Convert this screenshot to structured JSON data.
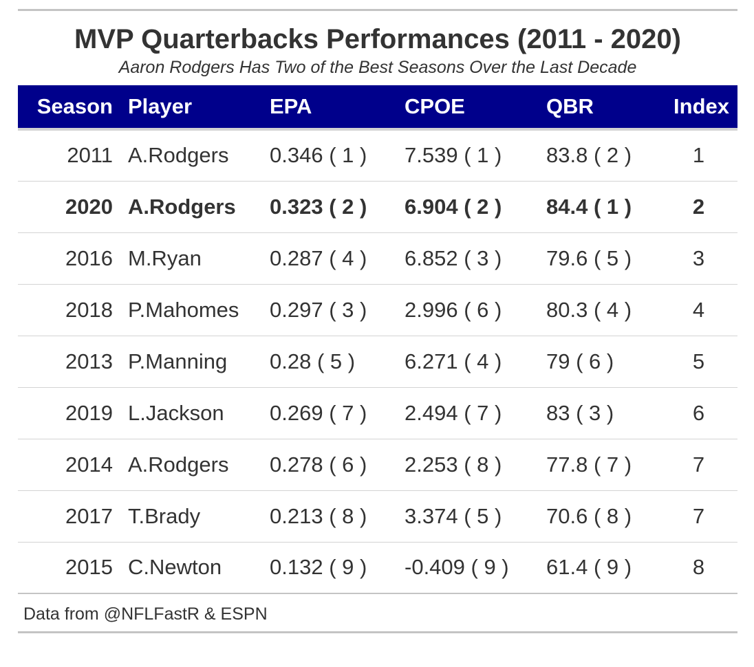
{
  "title": "MVP Quarterbacks Performances (2011 - 2020)",
  "subtitle": "Aaron Rodgers Has Two of the Best Seasons Over the Last Decade",
  "source": "Data from @NFLFastR & ESPN",
  "colors": {
    "header_bg": "#00008b",
    "header_text": "#ffffff",
    "body_text": "#333333",
    "rule": "#d3d3d3"
  },
  "chart_data": {
    "type": "table",
    "title": "MVP Quarterbacks Performances (2011 - 2020)",
    "subtitle": "Aaron Rodgers Has Two of the Best Seasons Over the Last Decade",
    "columns": [
      "Season",
      "Player",
      "EPA",
      "CPOE",
      "QBR",
      "Index"
    ],
    "rows": [
      {
        "season": "2011",
        "player": "A.Rodgers",
        "epa": "0.346 ( 1 )",
        "cpoe": "7.539 ( 1 )",
        "qbr": "83.8 ( 2 )",
        "index": "1",
        "bold": false
      },
      {
        "season": "2020",
        "player": "A.Rodgers",
        "epa": "0.323 ( 2 )",
        "cpoe": "6.904 ( 2 )",
        "qbr": "84.4 ( 1 )",
        "index": "2",
        "bold": true
      },
      {
        "season": "2016",
        "player": "M.Ryan",
        "epa": "0.287 ( 4 )",
        "cpoe": "6.852 ( 3 )",
        "qbr": "79.6 ( 5 )",
        "index": "3",
        "bold": false
      },
      {
        "season": "2018",
        "player": "P.Mahomes",
        "epa": "0.297 ( 3 )",
        "cpoe": "2.996 ( 6 )",
        "qbr": "80.3 ( 4 )",
        "index": "4",
        "bold": false
      },
      {
        "season": "2013",
        "player": "P.Manning",
        "epa": "0.28 ( 5 )",
        "cpoe": "6.271 ( 4 )",
        "qbr": "79 ( 6 )",
        "index": "5",
        "bold": false
      },
      {
        "season": "2019",
        "player": "L.Jackson",
        "epa": "0.269 ( 7 )",
        "cpoe": "2.494 ( 7 )",
        "qbr": "83 ( 3 )",
        "index": "6",
        "bold": false
      },
      {
        "season": "2014",
        "player": "A.Rodgers",
        "epa": "0.278 ( 6 )",
        "cpoe": "2.253 ( 8 )",
        "qbr": "77.8 ( 7 )",
        "index": "7",
        "bold": false
      },
      {
        "season": "2017",
        "player": "T.Brady",
        "epa": "0.213 ( 8 )",
        "cpoe": "3.374 ( 5 )",
        "qbr": "70.6 ( 8 )",
        "index": "7",
        "bold": false
      },
      {
        "season": "2015",
        "player": "C.Newton",
        "epa": "0.132 ( 9 )",
        "cpoe": "-0.409 ( 9 )",
        "qbr": "61.4 ( 9 )",
        "index": "8",
        "bold": false
      }
    ]
  }
}
